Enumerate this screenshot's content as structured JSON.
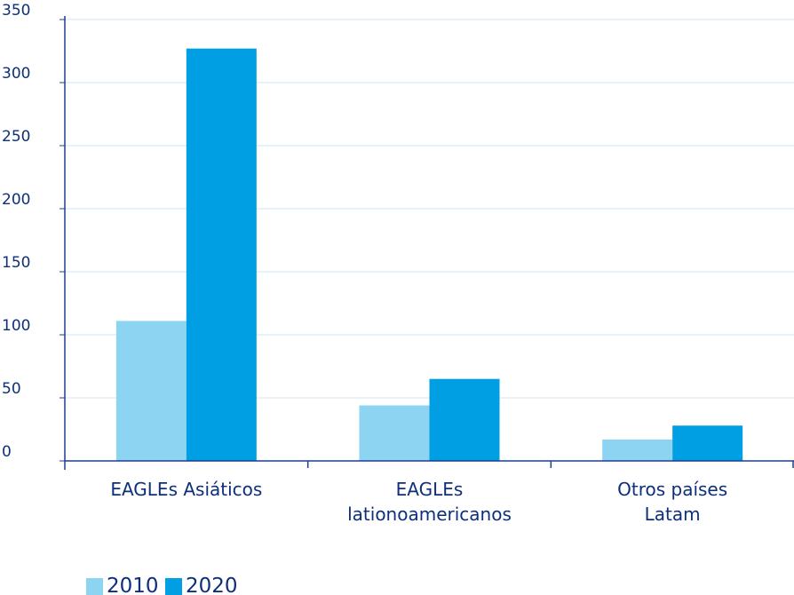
{
  "chart_data": {
    "type": "bar",
    "categories": [
      "EAGLEs Asiáticos",
      "EAGLEs\nlationoamericanos",
      "Otros países\nLatam"
    ],
    "series": [
      {
        "name": "2010",
        "color": "#8dd3f2",
        "values": [
          111,
          44,
          17
        ]
      },
      {
        "name": "2020",
        "color": "#009fe3",
        "values": [
          327,
          65,
          28
        ]
      }
    ],
    "ylim": [
      0,
      350
    ],
    "yticks": [
      0,
      50,
      100,
      150,
      200,
      250,
      300,
      350
    ],
    "grid": true
  }
}
